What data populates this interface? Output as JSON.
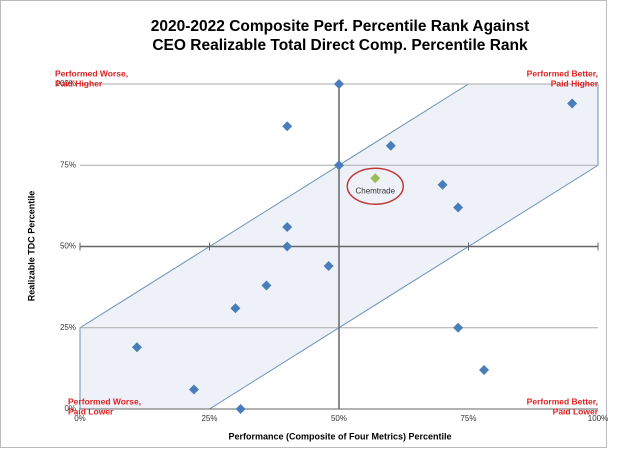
{
  "chart_data": {
    "type": "scatter",
    "title": [
      "2020-2022 Composite Perf. Percentile Rank Against",
      "CEO Realizable Total Direct Comp. Percentile Rank"
    ],
    "x_label": "Performance (Composite of Four Metrics) Percentile",
    "y_label": "Realizable TDC Percentile",
    "xlim": [
      0,
      100
    ],
    "ylim": [
      0,
      100
    ],
    "xticks": [
      {
        "value": 0,
        "label": "0%"
      },
      {
        "value": 25,
        "label": "25%"
      },
      {
        "value": 50,
        "label": "50%"
      },
      {
        "value": 75,
        "label": "75%"
      },
      {
        "value": 100,
        "label": "100%"
      }
    ],
    "yticks": [
      {
        "value": 0,
        "label": "0%"
      },
      {
        "value": 25,
        "label": "25%"
      },
      {
        "value": 50,
        "label": "50%"
      },
      {
        "value": 75,
        "label": "75%"
      },
      {
        "value": 100,
        "label": "100%"
      }
    ],
    "color": "#4a7ebb",
    "x": [
      50,
      40,
      60,
      50,
      70,
      73,
      40,
      40,
      48,
      36,
      30,
      11,
      22,
      31,
      73,
      78,
      95
    ],
    "values": [
      100,
      87,
      81,
      75,
      69,
      62,
      56,
      50,
      44,
      38,
      31,
      19,
      6,
      0,
      25,
      12,
      94
    ],
    "highlight": {
      "label": "Chemtrade",
      "x": 57,
      "y": 71,
      "color": "#9bbb59"
    },
    "annotations": [
      {
        "lines": [
          "Performed Worse,",
          "Paid Higher"
        ]
      },
      {
        "lines": [
          "Performed Better,",
          "Paid Higher"
        ]
      },
      {
        "lines": [
          "Performed Worse,",
          "Paid Lower"
        ]
      },
      {
        "lines": [
          "Performed Better,",
          "Paid Lower"
        ]
      }
    ]
  }
}
